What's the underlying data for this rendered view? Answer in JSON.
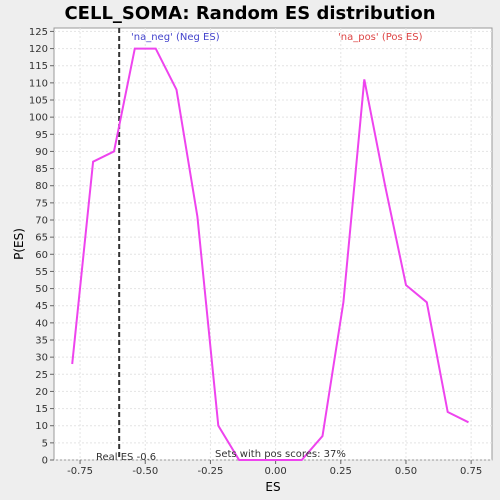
{
  "chart_data": {
    "type": "line",
    "title": "CELL_SOMA: Random ES distribution",
    "xlabel": "ES",
    "ylabel": "P(ES)",
    "xlim": [
      -0.85,
      0.83
    ],
    "ylim": [
      0,
      126
    ],
    "xticks": [
      -0.75,
      -0.5,
      -0.25,
      0.0,
      0.25,
      0.5,
      0.75
    ],
    "xtick_labels": [
      "-0.75",
      "-0.50",
      "-0.25",
      "0.00",
      "0.25",
      "0.50",
      "0.75"
    ],
    "yticks": [
      0,
      5,
      10,
      15,
      20,
      25,
      30,
      35,
      40,
      45,
      50,
      55,
      60,
      65,
      70,
      75,
      80,
      85,
      90,
      95,
      100,
      105,
      110,
      115,
      120,
      125
    ],
    "ytick_labels": [
      "0",
      "5",
      "10",
      "15",
      "20",
      "25",
      "30",
      "35",
      "40",
      "45",
      "50",
      "55",
      "60",
      "65",
      "70",
      "75",
      "80",
      "85",
      "90",
      "95",
      "100",
      "105",
      "110",
      "115",
      "120",
      "125"
    ],
    "grid": true,
    "series": [
      {
        "color": "#ee44ee",
        "x": [
          -0.78,
          -0.7,
          -0.62,
          -0.54,
          -0.46,
          -0.38,
          -0.3,
          -0.22,
          -0.14,
          -0.06,
          0.02,
          0.1,
          0.18,
          0.26,
          0.34,
          0.42,
          0.5,
          0.58,
          0.66,
          0.74
        ],
        "y": [
          28,
          87,
          90,
          120,
          120,
          108,
          71,
          10,
          0,
          0,
          0,
          0,
          7,
          46,
          111,
          80,
          51,
          46,
          14,
          11
        ]
      }
    ],
    "real_es": -0.6,
    "annotations": {
      "neg_label": "'na_neg' (Neg ES)",
      "pos_label": "'na_pos' (Pos ES)",
      "real_es_label": "Real ES -0.6",
      "pos_scores_label": "Sets with pos scores: 37%",
      "neg_color": "#4444cc",
      "pos_color": "#dd4444"
    }
  }
}
